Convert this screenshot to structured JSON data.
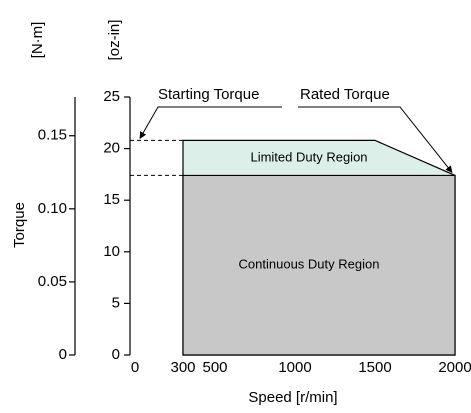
{
  "chart_data": {
    "type": "area",
    "x_label": "Speed [r/min]",
    "y_label": "Torque",
    "y_unit_label": "[oz-in]",
    "y2_unit_label": "[N·m]",
    "xlim": [
      0,
      2000
    ],
    "xticks": [
      0,
      300,
      500,
      1000,
      1500,
      2000
    ],
    "ylim": [
      0,
      25
    ],
    "yticks": [
      0,
      5,
      10,
      15,
      20,
      25
    ],
    "y2lim": [
      0,
      0.1765
    ],
    "y2ticks": [
      {
        "value": 0,
        "label": "0"
      },
      0.05,
      {
        "value": 0.1,
        "label": "0.10"
      },
      0.15
    ],
    "regions": [
      {
        "name": "Limited Duty Region",
        "color": "#dcefe9",
        "x": [
          300,
          1500,
          2000
        ],
        "values": [
          20.8,
          20.8,
          17.4
        ]
      },
      {
        "name": "Continuous Duty Region",
        "color": "#c8c8c8",
        "x": [
          300,
          2000
        ],
        "values": [
          17.4,
          17.4
        ]
      }
    ],
    "annotations": [
      {
        "text": "Starting Torque"
      },
      {
        "text": "Rated Torque"
      }
    ]
  }
}
